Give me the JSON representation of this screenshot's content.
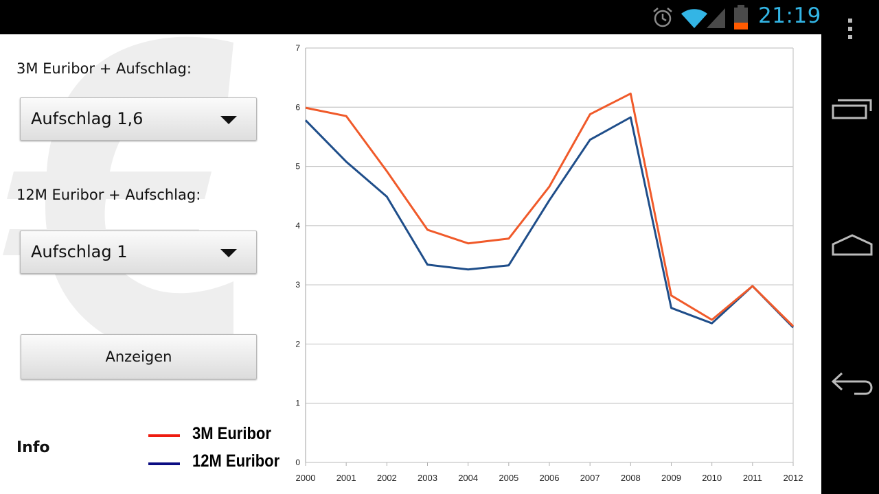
{
  "status_bar": {
    "time": "21:19",
    "icons": [
      "alarm-icon",
      "wifi-icon",
      "signal-icon",
      "battery-icon"
    ],
    "accent_color": "#33b5e5"
  },
  "form": {
    "label_3m": "3M Euribor + Aufschlag:",
    "select_3m": "Aufschlag 1,6",
    "label_12m": "12M Euribor + Aufschlag:",
    "select_12m": "Aufschlag 1",
    "show_button": "Anzeigen",
    "info_link": "Info"
  },
  "legend": [
    {
      "label": "3M Euribor",
      "color": "#ee1c10"
    },
    {
      "label": "12M Euribor",
      "color": "#0b0c82"
    }
  ],
  "nav_bar": {
    "icons": [
      "overflow-menu-icon",
      "recent-apps-icon",
      "home-icon",
      "back-icon"
    ]
  },
  "chart_data": {
    "type": "line",
    "x": [
      "2000",
      "2001",
      "2002",
      "2003",
      "2004",
      "2005",
      "2006",
      "2007",
      "2008",
      "2009",
      "2010",
      "2011",
      "2012"
    ],
    "ylim": [
      0,
      7
    ],
    "yticks": [
      "0",
      "1",
      "2",
      "3",
      "4",
      "5",
      "6",
      "7"
    ],
    "grid": true,
    "series": [
      {
        "name": "3M Euribor",
        "color": "#f05a2a",
        "values": [
          5.99,
          5.85,
          4.92,
          3.93,
          3.7,
          3.78,
          4.66,
          5.88,
          6.23,
          2.82,
          2.41,
          2.98,
          2.3
        ]
      },
      {
        "name": "12M Euribor",
        "color": "#1f4e8a",
        "values": [
          5.78,
          5.08,
          4.49,
          3.34,
          3.26,
          3.33,
          4.43,
          5.45,
          5.83,
          2.61,
          2.35,
          2.98,
          2.28
        ]
      }
    ]
  }
}
